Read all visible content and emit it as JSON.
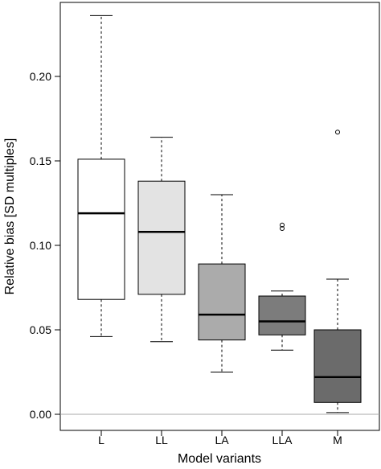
{
  "chart_data": {
    "type": "boxplot",
    "xlabel": "Model variants",
    "ylabel": "Relative bias [SD multiples]",
    "ylim": [
      -0.012,
      0.245
    ],
    "yticks": [
      "0.00",
      "0.05",
      "0.10",
      "0.15",
      "0.20"
    ],
    "reference_line": 0.0,
    "categories": [
      "L",
      "LL",
      "LA",
      "LLA",
      "M"
    ],
    "boxes": [
      {
        "label": "L",
        "whisker_low": 0.046,
        "q1": 0.068,
        "median": 0.119,
        "q3": 0.151,
        "whisker_high": 0.236,
        "outliers": [],
        "fill": "#ffffff"
      },
      {
        "label": "LL",
        "whisker_low": 0.043,
        "q1": 0.071,
        "median": 0.108,
        "q3": 0.138,
        "whisker_high": 0.164,
        "outliers": [],
        "fill": "#e3e3e3"
      },
      {
        "label": "LA",
        "whisker_low": 0.025,
        "q1": 0.044,
        "median": 0.059,
        "q3": 0.089,
        "whisker_high": 0.13,
        "outliers": [],
        "fill": "#ababab"
      },
      {
        "label": "LLA",
        "whisker_low": 0.038,
        "q1": 0.047,
        "median": 0.055,
        "q3": 0.07,
        "whisker_high": 0.073,
        "outliers": [
          0.11,
          0.112
        ],
        "fill": "#7c7c7c"
      },
      {
        "label": "M",
        "whisker_low": 0.001,
        "q1": 0.007,
        "median": 0.022,
        "q3": 0.05,
        "whisker_high": 0.08,
        "outliers": [
          0.167
        ],
        "fill": "#6b6b6b"
      }
    ],
    "grid": false
  }
}
